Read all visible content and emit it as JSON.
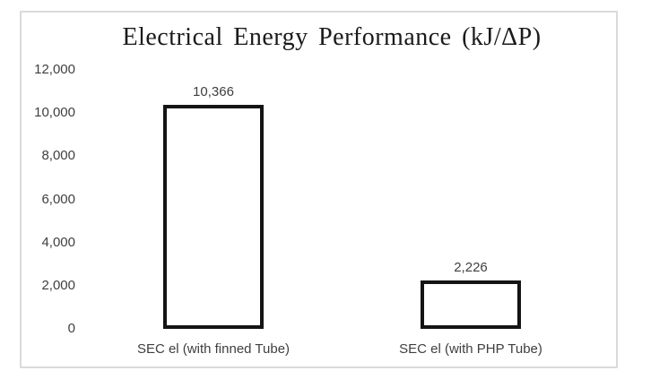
{
  "chart_data": {
    "type": "bar",
    "title": "Electrical Energy Performance (kJ/ΔP)",
    "categories": [
      "SEC el (with finned Tube)",
      "SEC el (with PHP Tube)"
    ],
    "values": [
      10366,
      2226
    ],
    "value_labels": [
      "10,366",
      "2,226"
    ],
    "xlabel": "",
    "ylabel": "",
    "ylim": [
      0,
      12000
    ],
    "yticks": [
      {
        "value": 12000,
        "label": "12,000"
      },
      {
        "value": 10000,
        "label": "10,000"
      },
      {
        "value": 8000,
        "label": "8,000"
      },
      {
        "value": 6000,
        "label": "6,000"
      },
      {
        "value": 4000,
        "label": "4,000"
      },
      {
        "value": 2000,
        "label": "2,000"
      },
      {
        "value": 0,
        "label": "0"
      }
    ],
    "grid": false,
    "legend": "none",
    "colors": {
      "bar_fill": "#ffffff",
      "bar_border": "#141414",
      "frame_border": "#dadada",
      "text": "#3f3f3f",
      "title_text": "#1a1a1a"
    }
  }
}
